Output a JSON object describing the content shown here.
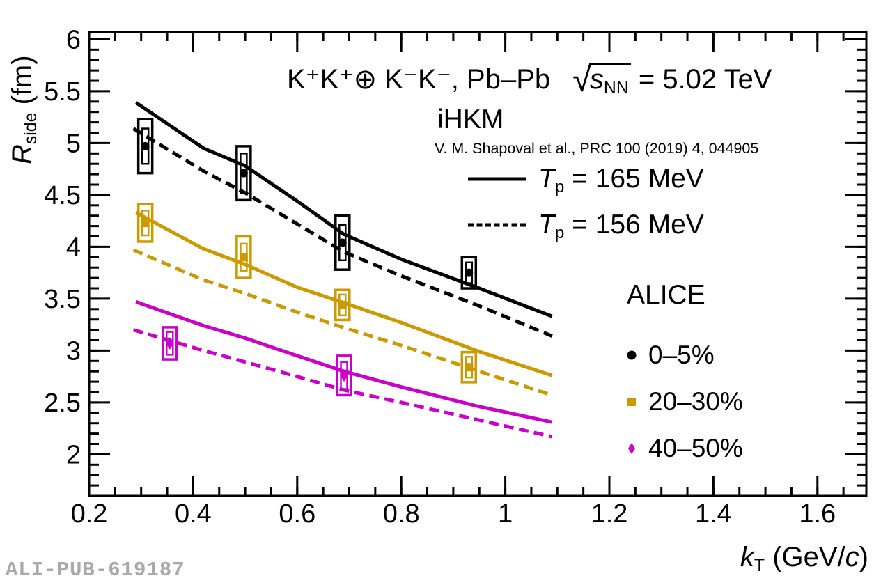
{
  "watermark": {
    "text": "ALI-PUB-619187",
    "color": "#a9a9a9"
  },
  "title": {
    "system": "K⁺K⁺⊕ K⁻K⁻, Pb–Pb",
    "radical": "√",
    "s": "s",
    "s_sub": "NN",
    "energy": " = 5.02 TeV"
  },
  "model_legend": {
    "heading": "iHKM",
    "reference": "V. M. Shapoval et al., PRC 100 (2019) 4, 044905",
    "entries": [
      {
        "line_style": "solid",
        "var": "T",
        "var_sub": "p",
        "value": " = 165 MeV"
      },
      {
        "line_style": "dashed",
        "var": "T",
        "var_sub": "p",
        "value": " = 156 MeV"
      }
    ]
  },
  "alice_legend": {
    "heading": "ALICE",
    "entries": [
      {
        "marker": "circle",
        "color": "#000000",
        "label": "0–5%"
      },
      {
        "marker": "square",
        "color": "#cc9900",
        "label": "20–30%"
      },
      {
        "marker": "diamond",
        "color": "#cc00cc",
        "label": "40–50%"
      }
    ]
  },
  "x_axis_label": {
    "var": "k",
    "sub": "T",
    "rest_open": " (GeV/",
    "c": "c",
    "rest_close": ")"
  },
  "y_axis_label": {
    "var": "R",
    "sub": "side",
    "rest": " (fm)"
  },
  "chart_data": {
    "type": "line",
    "title": "K+K+ (+) K-K-, Pb-Pb, sqrt(s_NN) = 5.02 TeV",
    "xlabel": "kT (GeV/c)",
    "ylabel": "Rside (fm)",
    "xlim": [
      0.2,
      1.694
    ],
    "ylim": [
      1.6,
      6.07
    ],
    "x_tick_values": [
      0.2,
      0.4,
      0.6,
      0.8,
      1.0,
      1.2,
      1.4,
      1.6
    ],
    "x_tick_labels": [
      "0.2",
      "0.4",
      "0.6",
      "0.8",
      "1",
      "1.2",
      "1.4",
      "1.6"
    ],
    "x_minor_step": 0.05,
    "y_tick_values": [
      2,
      2.5,
      3,
      3.5,
      4,
      4.5,
      5,
      5.5,
      6
    ],
    "y_tick_labels": [
      "2",
      "2.5",
      "3",
      "3.5",
      "4",
      "4.5",
      "5",
      "5.5",
      "6"
    ],
    "y_minor_step": 0.1,
    "grid": false,
    "legend_position": "inside-right",
    "model_curves": [
      {
        "name": "iHKM Tp=165 MeV, 0-5%",
        "color": "#000000",
        "dash": "solid",
        "points": [
          [
            0.29,
            5.39
          ],
          [
            0.42,
            4.95
          ],
          [
            0.5,
            4.78
          ],
          [
            0.6,
            4.44
          ],
          [
            0.69,
            4.12
          ],
          [
            0.8,
            3.88
          ],
          [
            0.95,
            3.6
          ],
          [
            1.09,
            3.33
          ]
        ]
      },
      {
        "name": "iHKM Tp=156 MeV, 0-5%",
        "color": "#000000",
        "dash": "dashed",
        "points": [
          [
            0.285,
            5.14
          ],
          [
            0.42,
            4.73
          ],
          [
            0.5,
            4.52
          ],
          [
            0.6,
            4.22
          ],
          [
            0.69,
            3.95
          ],
          [
            0.8,
            3.72
          ],
          [
            0.95,
            3.43
          ],
          [
            1.09,
            3.14
          ]
        ]
      },
      {
        "name": "iHKM Tp=165 MeV, 20-30%",
        "color": "#cc9900",
        "dash": "solid",
        "points": [
          [
            0.29,
            4.33
          ],
          [
            0.42,
            3.98
          ],
          [
            0.5,
            3.83
          ],
          [
            0.6,
            3.61
          ],
          [
            0.69,
            3.46
          ],
          [
            0.8,
            3.27
          ],
          [
            0.95,
            2.99
          ],
          [
            1.09,
            2.76
          ]
        ]
      },
      {
        "name": "iHKM Tp=156 MeV, 20-30%",
        "color": "#cc9900",
        "dash": "dashed",
        "points": [
          [
            0.285,
            3.97
          ],
          [
            0.42,
            3.68
          ],
          [
            0.5,
            3.55
          ],
          [
            0.6,
            3.37
          ],
          [
            0.69,
            3.22
          ],
          [
            0.8,
            3.05
          ],
          [
            0.95,
            2.8
          ],
          [
            1.09,
            2.57
          ]
        ]
      },
      {
        "name": "iHKM Tp=165 MeV, 40-50%",
        "color": "#cc00cc",
        "dash": "solid",
        "points": [
          [
            0.29,
            3.47
          ],
          [
            0.42,
            3.24
          ],
          [
            0.5,
            3.12
          ],
          [
            0.6,
            2.95
          ],
          [
            0.69,
            2.8
          ],
          [
            0.8,
            2.65
          ],
          [
            0.95,
            2.46
          ],
          [
            1.09,
            2.31
          ]
        ]
      },
      {
        "name": "iHKM Tp=156 MeV, 40-50%",
        "color": "#cc00cc",
        "dash": "dashed",
        "points": [
          [
            0.285,
            3.2
          ],
          [
            0.42,
            3.0
          ],
          [
            0.5,
            2.89
          ],
          [
            0.6,
            2.75
          ],
          [
            0.69,
            2.62
          ],
          [
            0.8,
            2.5
          ],
          [
            0.95,
            2.33
          ],
          [
            1.09,
            2.17
          ]
        ]
      }
    ],
    "data_series": [
      {
        "name": "ALICE 0-5%",
        "color": "#000000",
        "marker": "circle",
        "points": [
          {
            "x": 0.308,
            "y": 4.97,
            "syst": 0.26,
            "stat": 0.17
          },
          {
            "x": 0.497,
            "y": 4.71,
            "syst": 0.26,
            "stat": 0.19
          },
          {
            "x": 0.687,
            "y": 4.04,
            "syst": 0.26,
            "stat": 0.17
          },
          {
            "x": 0.93,
            "y": 3.75,
            "syst": 0.15,
            "stat": 0.1
          }
        ]
      },
      {
        "name": "ALICE 20-30%",
        "color": "#cc9900",
        "marker": "square",
        "points": [
          {
            "x": 0.308,
            "y": 4.23,
            "syst": 0.18,
            "stat": 0.12
          },
          {
            "x": 0.497,
            "y": 3.9,
            "syst": 0.2,
            "stat": 0.13
          },
          {
            "x": 0.687,
            "y": 3.44,
            "syst": 0.145,
            "stat": 0.1
          },
          {
            "x": 0.93,
            "y": 2.84,
            "syst": 0.145,
            "stat": 0.1
          }
        ]
      },
      {
        "name": "ALICE 40-50%",
        "color": "#cc00cc",
        "marker": "diamond",
        "points": [
          {
            "x": 0.355,
            "y": 3.07,
            "syst": 0.155,
            "stat": 0.11
          },
          {
            "x": 0.69,
            "y": 2.76,
            "syst": 0.19,
            "stat": 0.13
          }
        ]
      }
    ]
  }
}
